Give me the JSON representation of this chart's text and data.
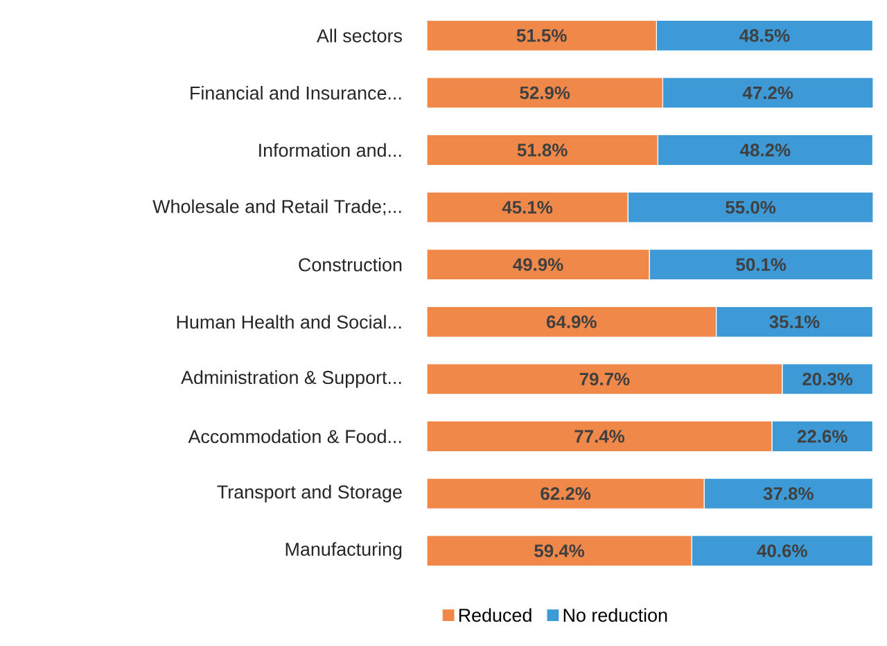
{
  "chart_data": {
    "type": "bar",
    "orientation": "horizontal",
    "stacked": true,
    "tick_labels": "y",
    "legend": "bottom",
    "categories": [
      "All sectors",
      "Financial and Insurance...",
      "Information and...",
      "Wholesale and Retail Trade;...",
      "Construction",
      "Human Health and Social...",
      "Administration & Support...",
      "Accommodation & Food...",
      "Transport and Storage",
      "Manufacturing"
    ],
    "series": [
      {
        "name": "Reduced",
        "color": "#f0884a",
        "values": [
          51.5,
          52.9,
          51.8,
          45.1,
          49.9,
          64.9,
          79.7,
          77.4,
          62.2,
          59.4
        ],
        "value_labels": [
          "51.5%",
          "52.9%",
          "51.8%",
          "45.1%",
          "49.9%",
          "64.9%",
          "79.7%",
          "77.4%",
          "62.2%",
          "59.4%"
        ]
      },
      {
        "name": "No reduction",
        "color": "#3d9ad6",
        "values": [
          48.5,
          47.2,
          48.2,
          55.0,
          50.1,
          35.1,
          20.3,
          22.6,
          37.8,
          40.6
        ],
        "value_labels": [
          "48.5%",
          "47.2%",
          "48.2%",
          "55.0%",
          "50.1%",
          "35.1%",
          "20.3%",
          "22.6%",
          "37.8%",
          "40.6%"
        ]
      }
    ]
  }
}
